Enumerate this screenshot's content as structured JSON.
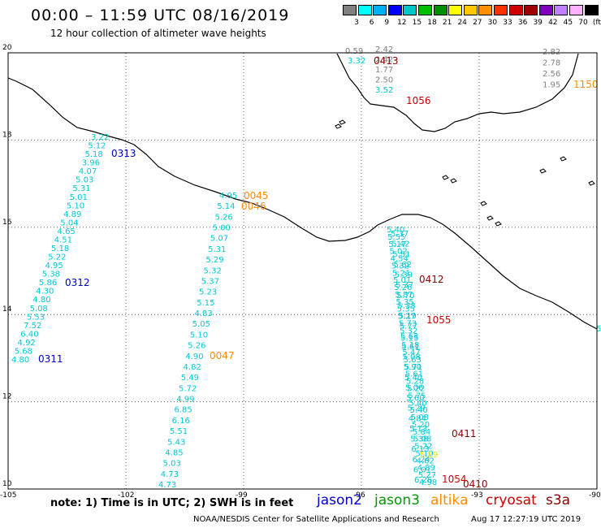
{
  "header": {
    "title": "00:00 – 11:59 UTC 08/16/2019",
    "subtitle": "12 hour collection of altimeter wave heights"
  },
  "scale": {
    "labels": [
      "3",
      "6",
      "9",
      "12",
      "15",
      "18",
      "21",
      "24",
      "27",
      "30",
      "33",
      "36",
      "39",
      "42",
      "45",
      "70",
      "(ft)"
    ],
    "colors": [
      "#808080",
      "#00ffff",
      "#00b0f0",
      "#0000ff",
      "#00c8c8",
      "#00c000",
      "#009000",
      "#ffff00",
      "#ffc800",
      "#ff9000",
      "#ff3000",
      "#d00000",
      "#a00000",
      "#8000c0",
      "#c080ff",
      "#ffb0ff",
      "#000000"
    ]
  },
  "axes": {
    "x_ticks": [
      "-105",
      "-102",
      "-99",
      "-96",
      "-93",
      "-90"
    ],
    "y_ticks": [
      "20",
      "18",
      "16",
      "14",
      "12",
      "10"
    ]
  },
  "colors": {
    "jason2": "#0000c8",
    "jason3": "#009900",
    "altika": "#ff8c00",
    "cryosat": "#cc0000",
    "s3a": "#880000",
    "wave": "#00c8d8",
    "gray": "#808080",
    "yellow": "#e8e800",
    "coast": "#000000",
    "grid": "#606060"
  },
  "footer": {
    "note": "note: 1) Time is in UTC; 2) SWH is in feet",
    "satellites": [
      "jason2",
      "jason3",
      "altika",
      "cryosat",
      "s3a"
    ],
    "credit": "NOAA/NESDIS Center for Satellite Applications and Research",
    "timestamp": "Aug 17 12:27:19 UTC 2019"
  },
  "tracks": [
    {
      "id": "jason2-0311-0313",
      "values": [
        "4.80",
        "5.68",
        "4.92",
        "6.40",
        "7.52",
        "5.53",
        "5.08",
        "4.80",
        "4.30",
        "5.86",
        "5.38",
        "4.95",
        "5.22",
        "5.18",
        "4.51",
        "4.65",
        "5.04",
        "4.89",
        "5.10",
        "5.01",
        "5.31",
        "5.03",
        "4.07",
        "3.96",
        "5.18",
        "5.12",
        "3.22"
      ],
      "color_keys": [
        "wave",
        "wave",
        "wave",
        "wave",
        "wave",
        "wave",
        "wave",
        "wave",
        "wave",
        "wave",
        "wave",
        "wave",
        "wave",
        "wave",
        "wave",
        "wave",
        "wave",
        "wave",
        "wave",
        "wave",
        "wave",
        "wave",
        "wave",
        "wave",
        "wave",
        "wave",
        "wave"
      ]
    },
    {
      "id": "altika-0045-0047",
      "values": [
        "4.73",
        "4.73",
        "5.03",
        "4.85",
        "5.43",
        "5.51",
        "6.16",
        "6.85",
        "4.99",
        "5.72",
        "5.49",
        "4.82",
        "4.90",
        "5.26",
        "5.10",
        "5.05",
        "4.83",
        "5.15",
        "5.23",
        "5.37",
        "5.32",
        "5.29",
        "5.31",
        "5.07",
        "5.00",
        "5.26",
        "5.14",
        "4.95"
      ],
      "color_keys": [
        "wave",
        "wave",
        "wave",
        "wave",
        "wave",
        "wave",
        "wave",
        "wave",
        "wave",
        "wave",
        "wave",
        "wave",
        "wave",
        "wave",
        "wave",
        "wave",
        "wave",
        "wave",
        "wave",
        "wave",
        "wave",
        "wave",
        "wave",
        "wave",
        "wave",
        "wave",
        "wave",
        "wave"
      ]
    },
    {
      "id": "cryosat-0410-0413",
      "values": [
        "4.98",
        "5.27",
        "4.89",
        "4.62",
        "5.10",
        "5.22",
        "5.08",
        "5.84",
        "5.20",
        "5.08",
        "5.40",
        "5.40",
        "5.75",
        "5.22",
        "5.28",
        "5.61",
        "5.71",
        "5.63",
        "5.47",
        "5.18",
        "5.15",
        "5.32",
        "5.73",
        "5.27",
        "5.35",
        "5.35",
        "5.87",
        "5.26",
        "5.01",
        "5.21",
        "5.32",
        "4.54",
        "5.02",
        "5.17",
        "5.55",
        "5.40"
      ],
      "color_keys": [
        "wave",
        "wave",
        "wave",
        "wave",
        "wave",
        "wave",
        "wave",
        "wave",
        "wave",
        "wave",
        "wave",
        "wave",
        "wave",
        "wave",
        "wave",
        "wave",
        "wave",
        "wave",
        "wave",
        "wave",
        "wave",
        "wave",
        "wave",
        "wave",
        "wave",
        "wave",
        "wave",
        "wave",
        "wave",
        "wave",
        "wave",
        "wave",
        "wave",
        "wave",
        "wave",
        "wave"
      ]
    },
    {
      "id": "cryosat-0410-inner",
      "values": [
        "6.26",
        "6.01",
        "6.24",
        "6.13",
        "5.38",
        "5.13",
        "4.84",
        "5.29",
        "5.60",
        "5.06",
        "5.40",
        "5.90",
        "5.08",
        "5.61",
        "5.63",
        "5.77",
        "5.19",
        "5.33",
        "5.70",
        "5.37",
        "5.39",
        "5.62",
        "5.51",
        "5.42",
        "5.37"
      ],
      "color_keys": [
        "wave",
        "wave",
        "wave",
        "wave",
        "wave",
        "wave",
        "wave",
        "wave",
        "wave",
        "wave",
        "wave",
        "wave",
        "wave",
        "wave",
        "wave",
        "wave",
        "wave",
        "wave",
        "wave",
        "wave",
        "wave",
        "wave",
        "wave",
        "wave",
        "wave"
      ]
    }
  ],
  "gulf_values": {
    "col1": [
      "0.59",
      "3.32"
    ],
    "col2": [
      "2.42",
      "2.42",
      "1.77",
      "2.50",
      "3.52"
    ],
    "col3": [
      "2.82",
      "2.78",
      "2.56",
      "1.95"
    ]
  },
  "time_labels": [
    {
      "text": "0313",
      "key": "jason2"
    },
    {
      "text": "0312",
      "key": "jason2"
    },
    {
      "text": "0311",
      "key": "jason2"
    },
    {
      "text": "0045",
      "key": "altika"
    },
    {
      "text": "0046",
      "key": "altika"
    },
    {
      "text": "0047",
      "key": "altika"
    },
    {
      "text": "0413",
      "key": "s3a"
    },
    {
      "text": "0412",
      "key": "s3a"
    },
    {
      "text": "0411",
      "key": "s3a"
    },
    {
      "text": "0410",
      "key": "s3a"
    },
    {
      "text": "1056",
      "key": "cryosat"
    },
    {
      "text": "1055",
      "key": "cryosat"
    },
    {
      "text": "1054",
      "key": "cryosat"
    },
    {
      "text": "1150",
      "key": "altika"
    }
  ],
  "yellow_value": "5.89",
  "edge_value": "5"
}
